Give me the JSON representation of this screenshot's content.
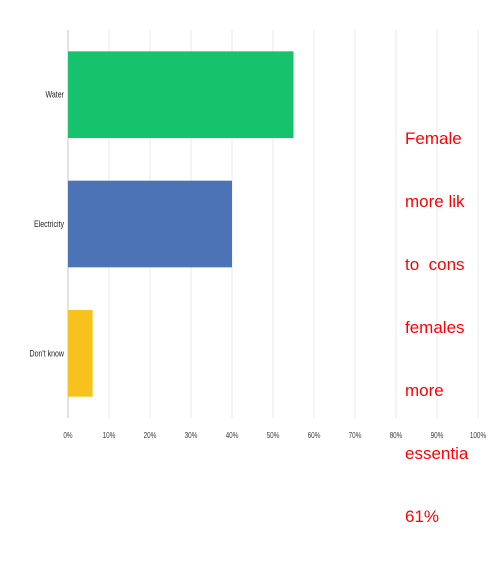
{
  "chart_data": {
    "type": "bar",
    "orientation": "horizontal",
    "categories": [
      "Water",
      "Electricity",
      "Don't know"
    ],
    "values": [
      55,
      40,
      6
    ],
    "bar_colors": [
      "#16c26b",
      "#4d73b7",
      "#f6c21b"
    ],
    "xlim": [
      0,
      100
    ],
    "x_tick_labels": [
      "0%",
      "10%",
      "20%",
      "30%",
      "40%",
      "50%",
      "60%",
      "70%",
      "80%",
      "90%",
      "100%"
    ],
    "grid": "vertical",
    "title": "",
    "xlabel": "",
    "ylabel": ""
  },
  "annotation": {
    "lines": [
      "Female",
      "more lik",
      "to  cons",
      "females",
      "more",
      "essentia",
      "61%"
    ],
    "color": "#ff0000"
  },
  "colors": {
    "grid": "#e9e9e9",
    "axis": "#c6c6c6",
    "label": "#222222",
    "tick": "#3a3a3a"
  }
}
